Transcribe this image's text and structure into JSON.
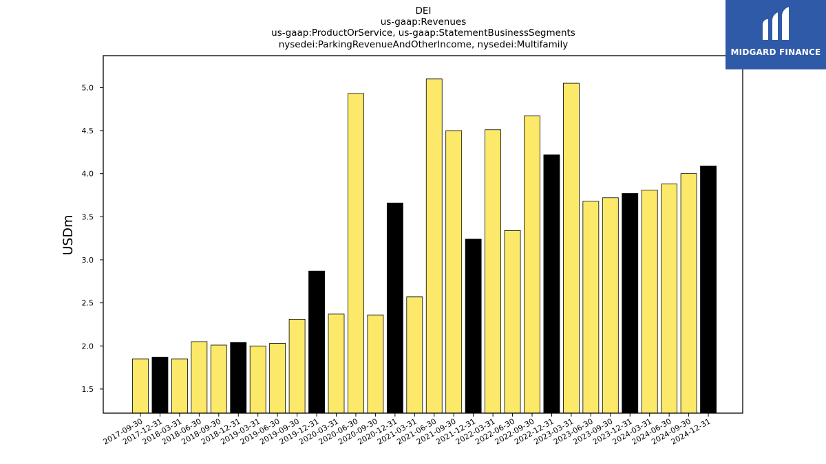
{
  "chart_data": {
    "type": "bar",
    "title_lines": [
      "DEI",
      "us-gaap:Revenues",
      "us-gaap:ProductOrService, us-gaap:StatementBusinessSegments",
      "nysedei:ParkingRevenueAndOtherIncome, nysedei:Multifamily"
    ],
    "xlabel": "",
    "ylabel": "USDm",
    "ylim": [
      1.22,
      5.37
    ],
    "yticks": [
      1.5,
      2.0,
      2.5,
      3.0,
      3.5,
      4.0,
      4.5,
      5.0
    ],
    "ytick_labels": [
      "1.5",
      "2.0",
      "2.5",
      "3.0",
      "3.5",
      "4.0",
      "4.5",
      "5.0"
    ],
    "grid": false,
    "categories": [
      "2017-09-30",
      "2017-12-31",
      "2018-03-31",
      "2018-06-30",
      "2018-09-30",
      "2018-12-31",
      "2019-03-31",
      "2019-06-30",
      "2019-09-30",
      "2019-12-31",
      "2020-03-31",
      "2020-06-30",
      "2020-09-30",
      "2020-12-31",
      "2021-03-31",
      "2021-06-30",
      "2021-09-30",
      "2021-12-31",
      "2022-03-31",
      "2022-06-30",
      "2022-09-30",
      "2022-12-31",
      "2023-03-31",
      "2023-06-30",
      "2023-09-30",
      "2023-12-31",
      "2024-03-31",
      "2024-06-30",
      "2024-09-30",
      "2024-12-31"
    ],
    "values": [
      1.85,
      1.87,
      1.85,
      2.05,
      2.01,
      2.04,
      2.0,
      2.03,
      2.31,
      2.87,
      2.37,
      4.93,
      2.36,
      3.66,
      2.57,
      5.1,
      4.5,
      3.24,
      4.51,
      3.34,
      4.67,
      4.22,
      5.05,
      3.68,
      3.72,
      3.77,
      3.81,
      3.88,
      4.0,
      4.09
    ],
    "bar_colors": {
      "quarter": "#fce96a",
      "year_end": "#000000",
      "edge": "#000000"
    }
  },
  "logo": {
    "text": "MIDGARD FINANCE",
    "background": "#2f5aa8"
  }
}
